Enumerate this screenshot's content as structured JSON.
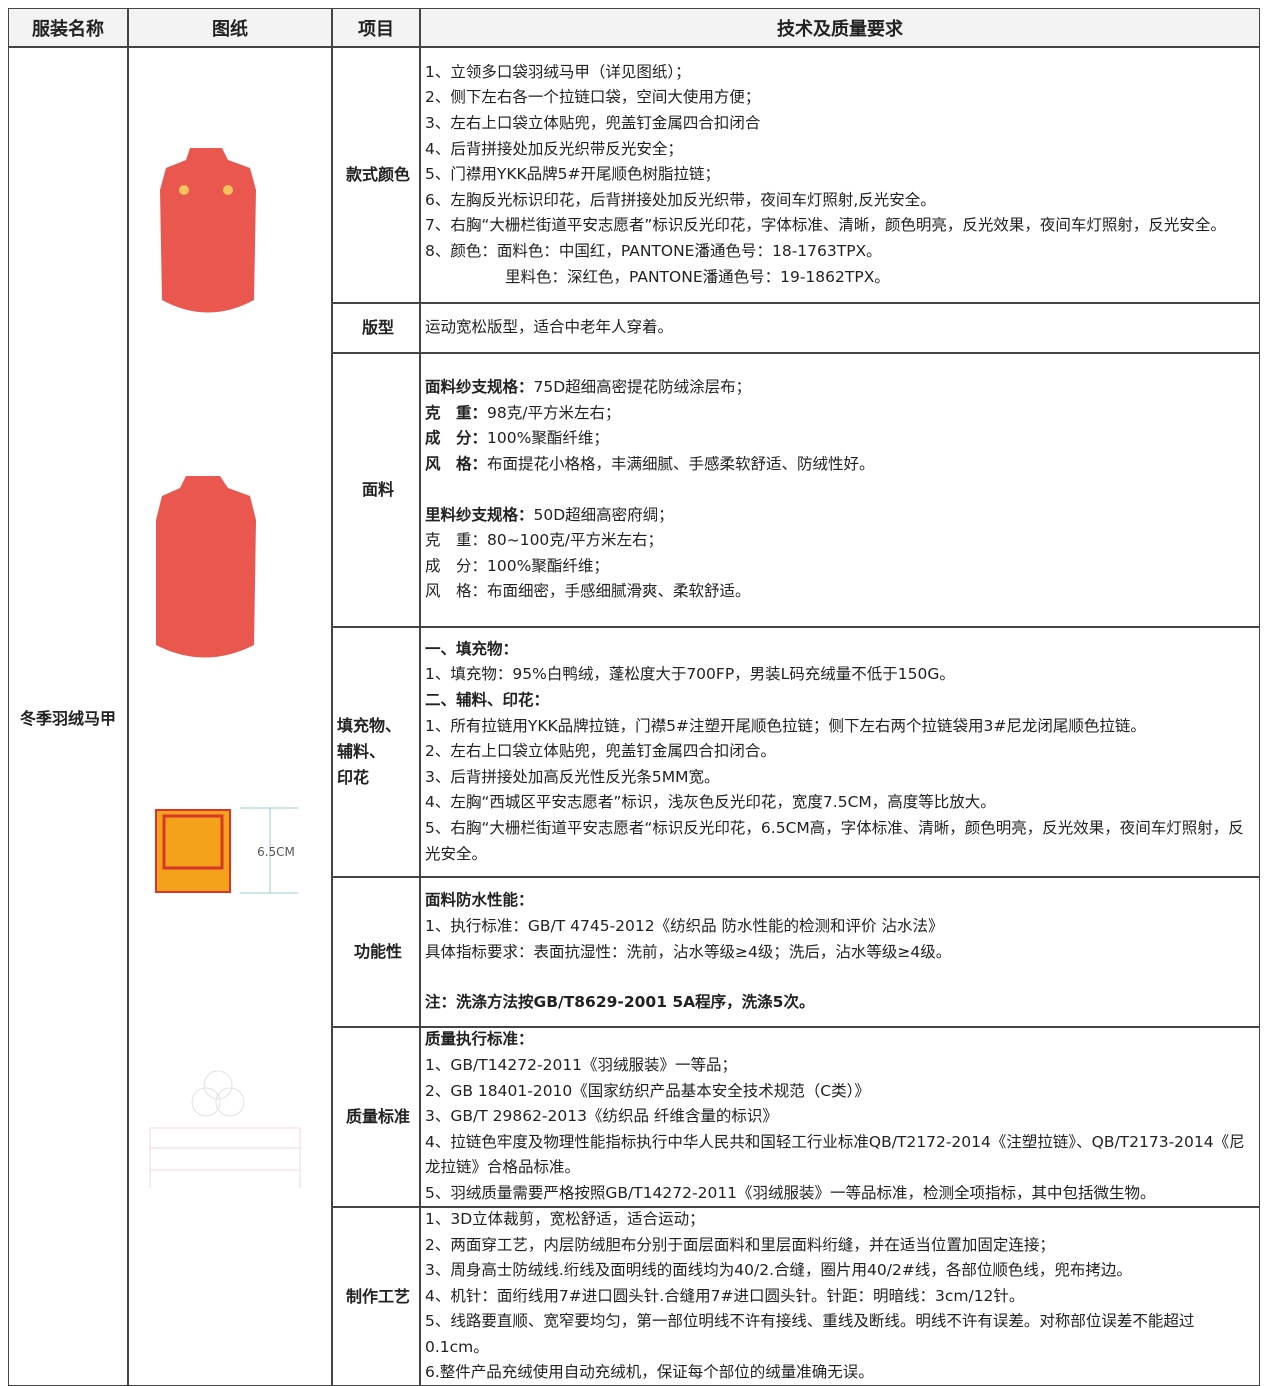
{
  "header": [
    "服装名称",
    "图纸",
    "项目",
    "技术及质量要求"
  ],
  "product": "冬季羽绒马甲",
  "drawing_label": "6.5CM",
  "rows": [
    {
      "item": "款式颜色",
      "groups": [
        [
          "1、立领多口袋羽绒马甲（详见图纸）；",
          "2、侧下左右各一个拉链口袋，空间大使用方便；",
          "3、左右上口袋立体贴兜，兜盖钉金属四合扣闭合",
          "4、后背拼接处加反光织带反光安全；",
          "5、门襟用YKK品牌5#开尾顺色树脂拉链；",
          "6、左胸反光标识印花，后背拼接处加反光织带，夜间车灯照射,反光安全。",
          "7、右胸“大栅栏街道平安志愿者”标识反光印花，字体标准、清晰，颜色明亮，反光效果，夜间车灯照射，反光安全。",
          "8、颜色：面料色：中国红，PANTONE潘通色号：18-1763TPX。",
          "里料色：深红色，PANTONE潘通色号：19-1862TPX。"
        ]
      ]
    },
    {
      "item": "版型",
      "groups": [
        [
          "运动宽松版型，适合中老年人穿着。"
        ]
      ]
    },
    {
      "item": "面料",
      "groups": [
        [
          {
            "label": "面料纱支规格：",
            "text": "75D超细高密提花防绒涂层布；"
          },
          {
            "label": "克　重：",
            "text": "98克/平方米左右；"
          },
          {
            "label": "成　分：",
            "text": "100%聚酯纤维；"
          },
          {
            "label": "风　格：",
            "text": "布面提花小格格，丰满细腻、手感柔软舒适、防绒性好。"
          }
        ],
        [
          {
            "label": "里料纱支规格：",
            "text": "50D超细高密府绸；"
          },
          "克　重：80~100克/平方米左右；",
          "成　分：100%聚酯纤维；",
          "风　格：布面细密，手感细腻滑爽、柔软舒适。"
        ]
      ]
    },
    {
      "item": "填充物、\n辅料、\n印花",
      "groups": [
        [
          {
            "label": "一、填充物："
          },
          "1、填充物：95%白鸭绒，蓬松度大于700FP，男装L码充绒量不低于150G。",
          {
            "label": "二、辅料、印花："
          },
          "1、所有拉链用YKK品牌拉链，门襟5#注塑开尾顺色拉链；侧下左右两个拉链袋用3#尼龙闭尾顺色拉链。",
          "2、左右上口袋立体贴兜，兜盖钉金属四合扣闭合。",
          "3、后背拼接处加高反光性反光条5MM宽。",
          "4、左胸“西城区平安志愿者”标识，浅灰色反光印花，宽度7.5CM，高度等比放大。",
          "5、右胸“大栅栏街道平安志愿者“标识反光印花，6.5CM高，字体标准、清晰，颜色明亮，反光效果，夜间车灯照射，反光安全。"
        ]
      ]
    },
    {
      "item": "功能性",
      "groups": [
        [
          {
            "label": "面料防水性能："
          },
          "1、执行标准：GB/T 4745-2012《纺织品 防水性能的检测和评价 沾水法》",
          "具体指标要求：表面抗湿性：洗前，沾水等级≥4级；洗后，沾水等级≥4级。"
        ],
        [
          {
            "label": "注：洗涤方法按GB/T8629-2001 5A程序，洗涤5次。"
          }
        ]
      ]
    },
    {
      "item": "质量标准",
      "groups": [
        [
          {
            "label": "质量执行标准："
          },
          "1、GB/T14272-2011《羽绒服装》一等品；",
          "2、GB 18401-2010《国家纺织产品基本安全技术规范（C类）》",
          "3、GB/T 29862-2013《纺织品 纤维含量的标识》",
          "4、拉链色牢度及物理性能指标执行中华人民共和国轻工行业标准QB/T2172-2014《注塑拉链》、QB/T2173-2014《尼龙拉链》合格品标准。",
          "5、羽绒质量需要严格按照GB/T14272-2011《羽绒服装》一等品标准，检测全项指标，其中包括微生物。"
        ]
      ]
    },
    {
      "item": "制作工艺",
      "groups": [
        [
          "1、3D立体裁剪，宽松舒适，适合运动；",
          "2、两面穿工艺，内层防绒胆布分别于面层面料和里层面料绗缝，并在适当位置加固定连接；",
          "3、周身高士防绒线.绗线及面明线的面线均为40/2.合缝，圈片用40/2#线，各部位顺色线，兜布拷边。",
          "4、机针：面绗线用7#进口圆头针.合缝用7#进口圆头针。针距：明暗线：3cm/12针。",
          "5、线路要直顺、宽窄要均匀，第一部位明线不许有接线、重线及断线。明线不许有误差。对称部位误差不能超过0.1cm。",
          "6.整件产品充绒使用自动充绒机，保证每个部位的绒量准确无误。"
        ]
      ]
    }
  ]
}
